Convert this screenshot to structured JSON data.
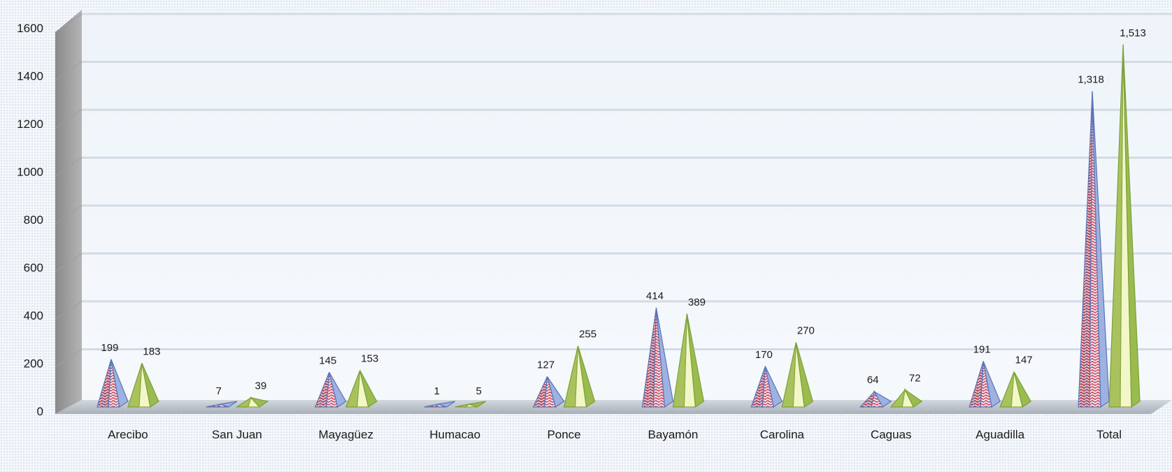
{
  "chart_data": {
    "type": "bar",
    "shape": "3d-pyramid",
    "title": "",
    "xlabel": "",
    "ylabel": "",
    "ylim": [
      0,
      1600
    ],
    "yticks": [
      "0",
      "200",
      "400",
      "600",
      "800",
      "1000",
      "1200",
      "1400",
      "1600"
    ],
    "grid": true,
    "legend": "none",
    "categories": [
      "Arecibo",
      "San Juan",
      "Mayagüez",
      "Humacao",
      "Ponce",
      "Bayamón",
      "Carolina",
      "Caguas",
      "Aguadilla",
      "Total"
    ],
    "series": [
      {
        "values": [
          199,
          7,
          145,
          1,
          127,
          414,
          170,
          64,
          191,
          1318
        ],
        "labels": [
          "199",
          "7",
          "145",
          "1",
          "127",
          "414",
          "170",
          "64",
          "191",
          "1,318"
        ],
        "color": "#e05a6a",
        "edge_color": "#5a74b8",
        "pattern": "red-white-blue-weave"
      },
      {
        "values": [
          183,
          39,
          153,
          5,
          255,
          389,
          270,
          72,
          147,
          1513
        ],
        "labels": [
          "183",
          "39",
          "153",
          "5",
          "255",
          "389",
          "270",
          "72",
          "147",
          "1,513"
        ],
        "color": "#c4dc7a",
        "edge_color": "#7aa03a",
        "pattern": "solid-green"
      }
    ]
  }
}
